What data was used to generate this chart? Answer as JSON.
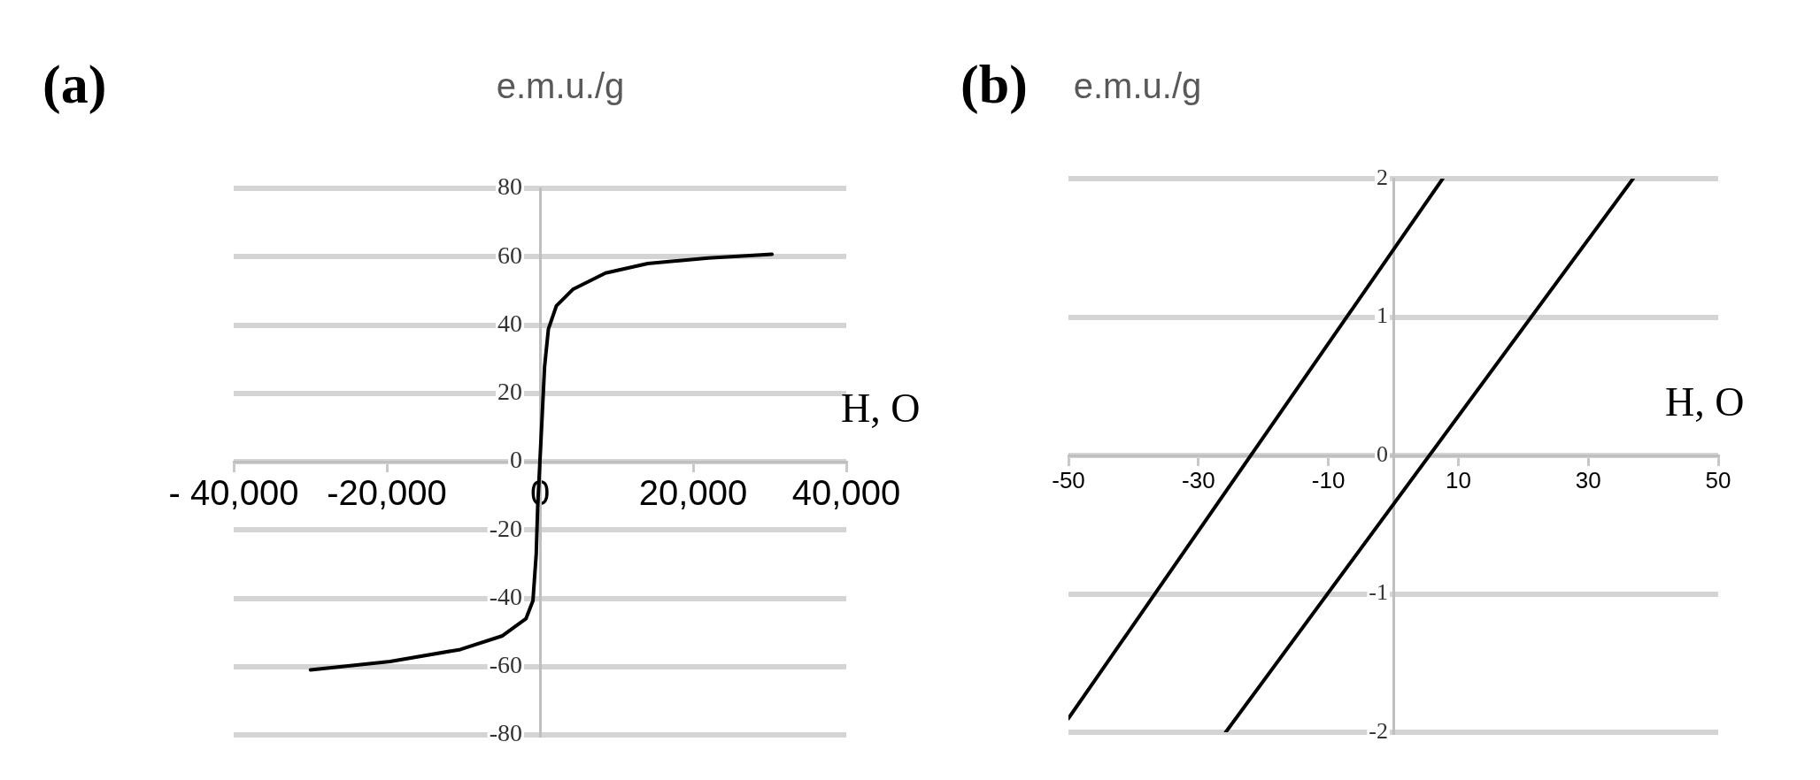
{
  "chart_data": [
    {
      "type": "line",
      "title": "(a)",
      "xlabel": "H, O",
      "ylabel": "e.m.u./g",
      "marker": "none",
      "grid": "y",
      "xlim": [
        -40000,
        40000
      ],
      "xticks": [
        {
          "value": -40000,
          "label": "- 40,000"
        },
        {
          "value": -20000,
          "label": "-20,000"
        },
        0,
        {
          "value": 20000,
          "label": "20,000"
        },
        {
          "value": 40000,
          "label": "40,000"
        }
      ],
      "ylim": [
        -80,
        80
      ],
      "yticks": [
        -80,
        -60,
        -40,
        -20,
        0,
        20,
        40,
        60,
        80
      ],
      "series": [
        {
          "color": "#000000",
          "x": [
            -29970,
            -19570,
            -10400,
            -4900,
            -1835,
            -917,
            -490,
            -300,
            0,
            300,
            600,
            1100,
            2140,
            4280,
            8560,
            14070,
            22000,
            30300
          ],
          "values": [
            -61,
            -58.5,
            -55,
            -51,
            -46,
            -40.7,
            -27,
            -13.3,
            0.4,
            14,
            27.8,
            38.8,
            45.6,
            50.4,
            55.2,
            58,
            59.6,
            60.7
          ]
        }
      ]
    },
    {
      "type": "line",
      "title": "(b)",
      "xlabel": "H, O",
      "ylabel": "e.m.u./g",
      "marker": "none",
      "grid": "y",
      "xlim": [
        -50,
        50
      ],
      "xticks": [
        -50,
        -30,
        -10,
        10,
        30,
        50
      ],
      "ylim": [
        -2,
        2
      ],
      "yticks": [
        -2,
        -1,
        0,
        1,
        2
      ],
      "series": [
        {
          "color": "#000000",
          "x": [
            -50,
            7.6
          ],
          "values": [
            -1.9,
            2
          ]
        },
        {
          "color": "#000000",
          "x": [
            -25.8,
            36.9
          ],
          "values": [
            -2,
            2
          ]
        }
      ]
    }
  ]
}
